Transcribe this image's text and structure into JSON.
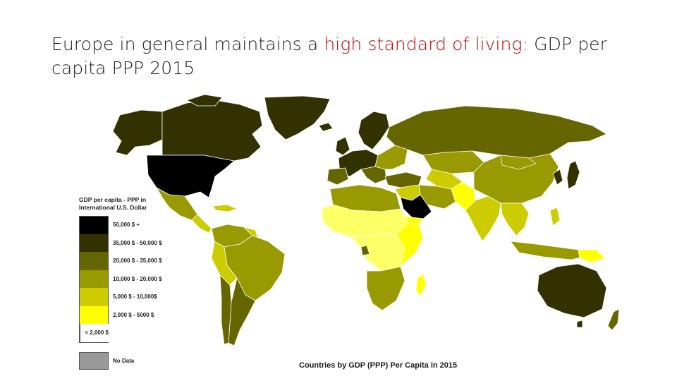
{
  "title": {
    "part1": "Europe in general maintains a ",
    "highlight": "high standard of living",
    "part2": ": GDP per capita PPP 2015"
  },
  "legend": {
    "title": "GDP per capita - PPP in International U.S. Dollar",
    "items": [
      {
        "label": "50,000 $ +",
        "color": "#000000"
      },
      {
        "label": "35,000 $ - 50,000 $",
        "color": "#323200"
      },
      {
        "label": "20,000 $ - 35,000 $",
        "color": "#666600"
      },
      {
        "label": "10,000 $ - 20,000 $",
        "color": "#999900"
      },
      {
        "label": "5,000 $ - 10,000$",
        "color": "#cccc00"
      },
      {
        "label": "2,000 $ - 5000 $",
        "color": "#ffff00"
      },
      {
        "label": "< 2,000 $",
        "color": "#ffff66"
      }
    ],
    "no_data": {
      "label": "No Data",
      "color": "#999999"
    }
  },
  "caption": "Countries by GDP (PPP) Per Capita in 2015"
}
